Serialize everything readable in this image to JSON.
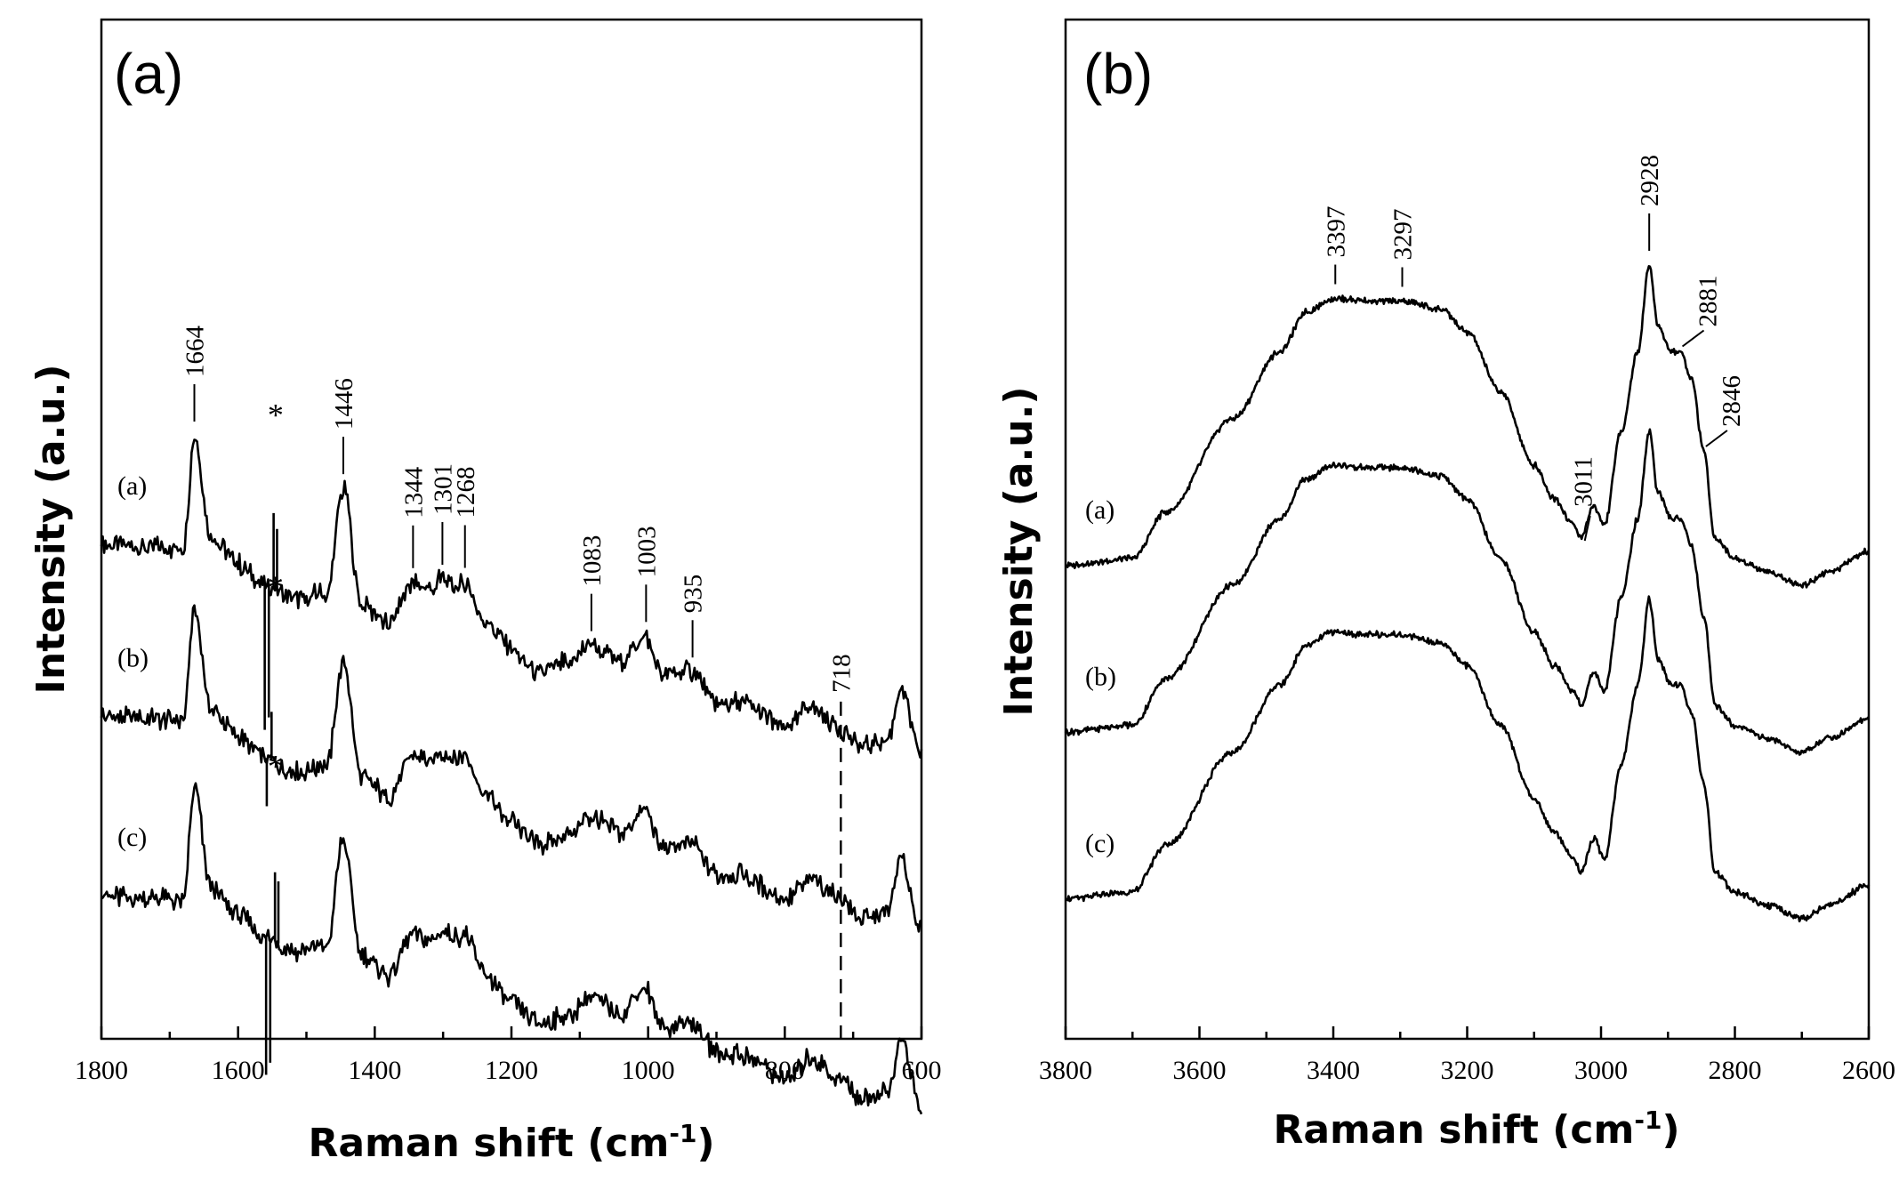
{
  "chart_data": [
    {
      "panel": "(a)",
      "type": "line",
      "xlabel": "Raman shift (cm",
      "xlabel_sup": "-1",
      "xlabel_close": ")",
      "ylabel": "Intensity (a.u.)",
      "xlim": [
        1800,
        600
      ],
      "x_reversed": true,
      "x_ticks": [
        1800,
        1600,
        1400,
        1200,
        1000,
        800,
        600
      ],
      "y_ticks": [],
      "grid": false,
      "series": [
        {
          "name": "(a)",
          "base": 3.6,
          "tilt": 1.55,
          "points": [
            [
              1800,
              0.0
            ],
            [
              1680,
              0.1
            ],
            [
              1664,
              0.95
            ],
            [
              1640,
              0.25
            ],
            [
              1600,
              0.1
            ],
            [
              1560,
              0.0
            ],
            [
              1520,
              -0.05
            ],
            [
              1470,
              0.05
            ],
            [
              1446,
              0.85
            ],
            [
              1420,
              0.05
            ],
            [
              1380,
              -0.05
            ],
            [
              1344,
              0.3
            ],
            [
              1320,
              0.28
            ],
            [
              1301,
              0.38
            ],
            [
              1280,
              0.35
            ],
            [
              1268,
              0.4
            ],
            [
              1240,
              0.15
            ],
            [
              1200,
              0.0
            ],
            [
              1160,
              -0.12
            ],
            [
              1120,
              0.0
            ],
            [
              1083,
              0.18
            ],
            [
              1040,
              0.12
            ],
            [
              1003,
              0.35
            ],
            [
              980,
              0.1
            ],
            [
              935,
              0.18
            ],
            [
              900,
              0.0
            ],
            [
              860,
              0.05
            ],
            [
              800,
              -0.05
            ],
            [
              760,
              0.15
            ],
            [
              718,
              0.05
            ],
            [
              690,
              -0.05
            ],
            [
              650,
              0.05
            ],
            [
              630,
              0.45
            ],
            [
              600,
              0.0
            ]
          ],
          "spikes": [
            [
              1561,
              -1.05
            ],
            [
              1555,
              -0.95
            ],
            [
              1548,
              0.55
            ],
            [
              1543,
              0.45
            ]
          ]
        },
        {
          "name": "(b)",
          "base": 2.35,
          "tilt": 1.55,
          "points": [
            [
              1800,
              0.0
            ],
            [
              1680,
              0.1
            ],
            [
              1664,
              0.95
            ],
            [
              1640,
              0.25
            ],
            [
              1600,
              0.1
            ],
            [
              1560,
              0.0
            ],
            [
              1520,
              -0.05
            ],
            [
              1470,
              0.05
            ],
            [
              1446,
              0.85
            ],
            [
              1420,
              0.05
            ],
            [
              1380,
              -0.05
            ],
            [
              1344,
              0.3
            ],
            [
              1320,
              0.28
            ],
            [
              1301,
              0.38
            ],
            [
              1280,
              0.35
            ],
            [
              1268,
              0.4
            ],
            [
              1240,
              0.15
            ],
            [
              1200,
              0.0
            ],
            [
              1160,
              -0.12
            ],
            [
              1120,
              0.0
            ],
            [
              1083,
              0.18
            ],
            [
              1040,
              0.12
            ],
            [
              1003,
              0.35
            ],
            [
              980,
              0.1
            ],
            [
              935,
              0.18
            ],
            [
              900,
              0.0
            ],
            [
              860,
              0.05
            ],
            [
              800,
              -0.05
            ],
            [
              760,
              0.15
            ],
            [
              718,
              0.05
            ],
            [
              690,
              -0.05
            ],
            [
              650,
              0.05
            ],
            [
              630,
              0.45
            ],
            [
              600,
              0.0
            ]
          ],
          "spikes": [
            [
              1558,
              -0.35
            ],
            [
              1551,
              0.35
            ]
          ]
        },
        {
          "name": "(c)",
          "base": 1.05,
          "tilt": 1.55,
          "points": [
            [
              1800,
              0.0
            ],
            [
              1680,
              0.1
            ],
            [
              1664,
              0.95
            ],
            [
              1640,
              0.25
            ],
            [
              1600,
              0.1
            ],
            [
              1560,
              0.0
            ],
            [
              1520,
              -0.05
            ],
            [
              1470,
              0.05
            ],
            [
              1446,
              0.85
            ],
            [
              1420,
              0.05
            ],
            [
              1380,
              -0.05
            ],
            [
              1344,
              0.3
            ],
            [
              1320,
              0.28
            ],
            [
              1301,
              0.38
            ],
            [
              1280,
              0.35
            ],
            [
              1268,
              0.4
            ],
            [
              1240,
              0.15
            ],
            [
              1200,
              0.0
            ],
            [
              1160,
              -0.12
            ],
            [
              1120,
              0.0
            ],
            [
              1083,
              0.18
            ],
            [
              1040,
              0.12
            ],
            [
              1003,
              0.35
            ],
            [
              980,
              0.1
            ],
            [
              935,
              0.18
            ],
            [
              900,
              0.0
            ],
            [
              860,
              0.05
            ],
            [
              800,
              -0.05
            ],
            [
              760,
              0.15
            ],
            [
              718,
              0.05
            ],
            [
              690,
              -0.05
            ],
            [
              650,
              0.05
            ],
            [
              630,
              0.45
            ],
            [
              600,
              0.0
            ]
          ],
          "spikes": [
            [
              1559,
              -1.0
            ],
            [
              1553,
              -0.9
            ],
            [
              1546,
              0.5
            ],
            [
              1541,
              0.45
            ]
          ]
        }
      ],
      "trace_labels": [
        "(a)",
        "(b)",
        "(c)"
      ],
      "peak_labels": [
        "1664",
        "1446",
        "1344",
        "1301",
        "1268",
        "1083",
        "1003",
        "935",
        "718"
      ],
      "peak_positions": [
        1664,
        1446,
        1344,
        1301,
        1268,
        1083,
        1003,
        935,
        718
      ],
      "asterisk": "*",
      "dashed_line_at": 718
    },
    {
      "panel": "(b)",
      "type": "line",
      "xlabel": "Raman shift (cm",
      "xlabel_sup": "-1",
      "xlabel_close": ")",
      "ylabel": "Intensity (a.u.)",
      "xlim": [
        3800,
        2600
      ],
      "x_reversed": true,
      "x_ticks": [
        3800,
        3600,
        3400,
        3200,
        3000,
        2800,
        2600
      ],
      "y_ticks": [],
      "grid": false,
      "series": [
        {
          "name": "(a)",
          "base": 3.55,
          "points": [
            [
              3800,
              0.0
            ],
            [
              3700,
              0.05
            ],
            [
              3650,
              0.4
            ],
            [
              3550,
              1.1
            ],
            [
              3480,
              1.6
            ],
            [
              3440,
              1.9
            ],
            [
              3400,
              2.0
            ],
            [
              3350,
              1.98
            ],
            [
              3297,
              1.98
            ],
            [
              3240,
              1.92
            ],
            [
              3200,
              1.75
            ],
            [
              3150,
              1.3
            ],
            [
              3100,
              0.75
            ],
            [
              3070,
              0.5
            ],
            [
              3040,
              0.3
            ],
            [
              3030,
              0.2
            ],
            [
              3011,
              0.45
            ],
            [
              2995,
              0.3
            ],
            [
              2970,
              1.0
            ],
            [
              2945,
              1.6
            ],
            [
              2928,
              2.25
            ],
            [
              2915,
              1.8
            ],
            [
              2895,
              1.6
            ],
            [
              2881,
              1.6
            ],
            [
              2865,
              1.4
            ],
            [
              2846,
              0.85
            ],
            [
              2830,
              0.2
            ],
            [
              2800,
              0.05
            ],
            [
              2750,
              -0.05
            ],
            [
              2700,
              -0.15
            ],
            [
              2660,
              -0.05
            ],
            [
              2600,
              0.1
            ]
          ]
        },
        {
          "name": "(b)",
          "base": 2.3,
          "points": [
            [
              3800,
              0.0
            ],
            [
              3700,
              0.05
            ],
            [
              3650,
              0.4
            ],
            [
              3550,
              1.1
            ],
            [
              3480,
              1.6
            ],
            [
              3440,
              1.9
            ],
            [
              3400,
              2.0
            ],
            [
              3350,
              1.98
            ],
            [
              3297,
              1.98
            ],
            [
              3240,
              1.92
            ],
            [
              3200,
              1.75
            ],
            [
              3150,
              1.3
            ],
            [
              3100,
              0.75
            ],
            [
              3070,
              0.5
            ],
            [
              3040,
              0.3
            ],
            [
              3030,
              0.2
            ],
            [
              3011,
              0.45
            ],
            [
              2995,
              0.3
            ],
            [
              2970,
              1.0
            ],
            [
              2945,
              1.6
            ],
            [
              2928,
              2.25
            ],
            [
              2915,
              1.8
            ],
            [
              2895,
              1.6
            ],
            [
              2881,
              1.6
            ],
            [
              2865,
              1.4
            ],
            [
              2846,
              0.85
            ],
            [
              2830,
              0.2
            ],
            [
              2800,
              0.05
            ],
            [
              2750,
              -0.05
            ],
            [
              2700,
              -0.15
            ],
            [
              2660,
              -0.05
            ],
            [
              2600,
              0.1
            ]
          ]
        },
        {
          "name": "(c)",
          "base": 1.05,
          "points": [
            [
              3800,
              0.0
            ],
            [
              3700,
              0.05
            ],
            [
              3650,
              0.4
            ],
            [
              3550,
              1.1
            ],
            [
              3480,
              1.6
            ],
            [
              3440,
              1.9
            ],
            [
              3400,
              2.0
            ],
            [
              3350,
              1.98
            ],
            [
              3297,
              1.98
            ],
            [
              3240,
              1.92
            ],
            [
              3200,
              1.75
            ],
            [
              3150,
              1.3
            ],
            [
              3100,
              0.75
            ],
            [
              3070,
              0.5
            ],
            [
              3040,
              0.3
            ],
            [
              3030,
              0.2
            ],
            [
              3011,
              0.45
            ],
            [
              2995,
              0.3
            ],
            [
              2970,
              1.0
            ],
            [
              2945,
              1.6
            ],
            [
              2928,
              2.25
            ],
            [
              2915,
              1.8
            ],
            [
              2895,
              1.6
            ],
            [
              2881,
              1.6
            ],
            [
              2865,
              1.4
            ],
            [
              2846,
              0.85
            ],
            [
              2830,
              0.2
            ],
            [
              2800,
              0.05
            ],
            [
              2750,
              -0.05
            ],
            [
              2700,
              -0.15
            ],
            [
              2660,
              -0.05
            ],
            [
              2600,
              0.1
            ]
          ]
        }
      ],
      "trace_labels": [
        "(a)",
        "(b)",
        "(c)"
      ],
      "peak_labels": [
        "3397",
        "3297",
        "3011",
        "2928",
        "2881",
        "2846"
      ],
      "peak_positions": [
        3397,
        3297,
        3011,
        2928,
        2881,
        2846
      ]
    }
  ]
}
